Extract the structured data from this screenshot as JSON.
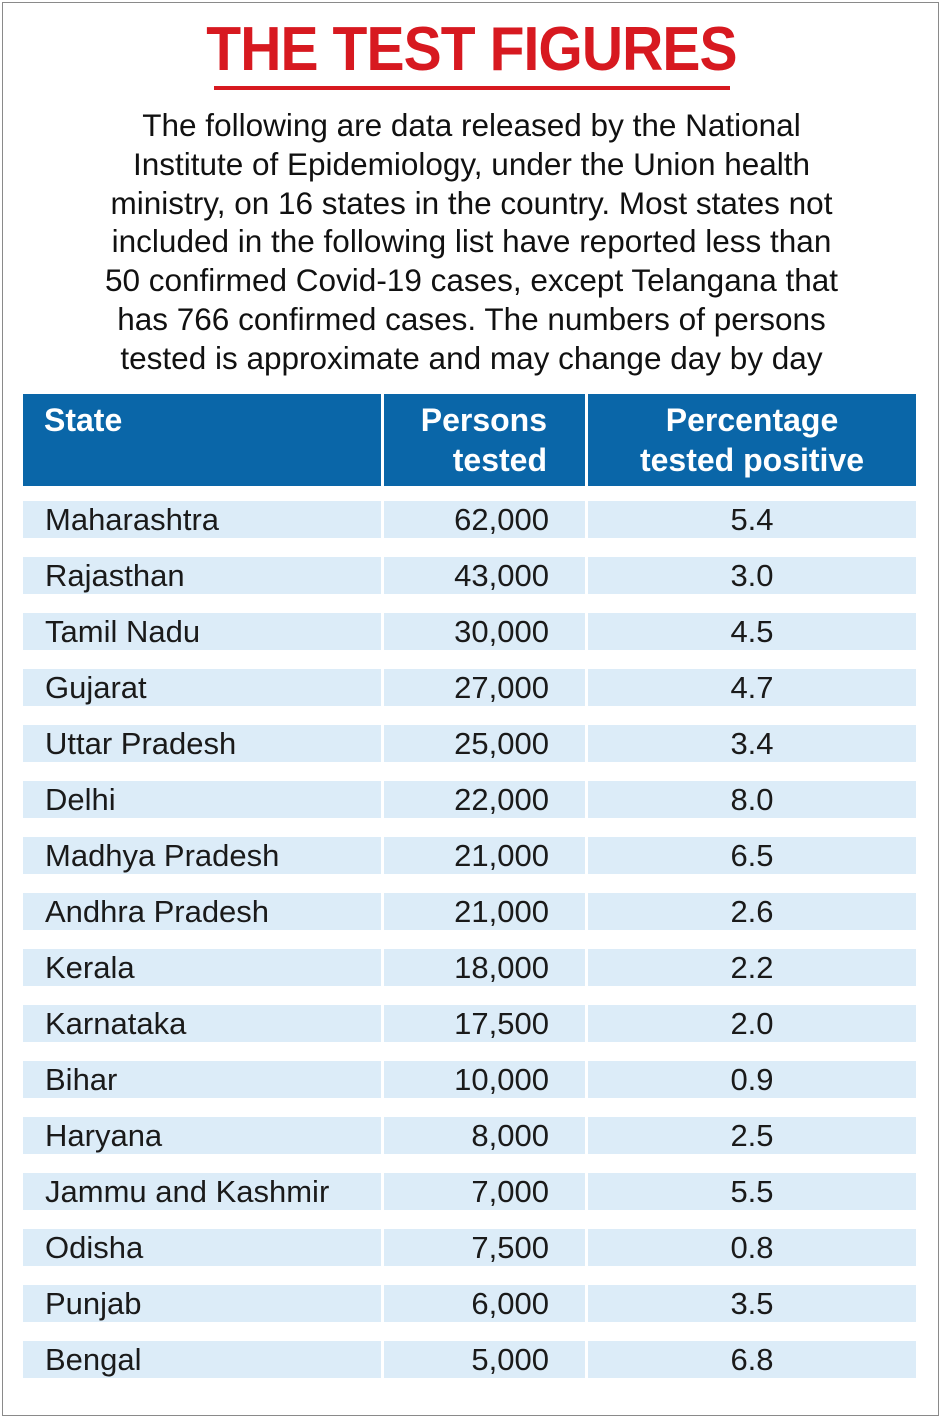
{
  "title": "THE TEST FIGURES",
  "intro_lines": [
    "The following are data released by the National",
    "Institute of Epidemiology, under the Union health",
    "ministry, on 16 states in the country. Most states not",
    "included in the following list have reported less than",
    "50 confirmed Covid-19 cases, except Telangana that",
    "has 766 confirmed cases.  The numbers of persons",
    "tested is  approximate and may change day by day"
  ],
  "colors": {
    "title_red": "#d71920",
    "header_blue": "#0a66a8",
    "row_light_blue": "#dcecf8"
  },
  "chart_data": {
    "type": "table",
    "columns": [
      {
        "key": "state",
        "label_lines": [
          "State"
        ]
      },
      {
        "key": "tested",
        "label_lines": [
          "Persons",
          "tested"
        ]
      },
      {
        "key": "pct",
        "label_lines": [
          "Percentage",
          "tested positive"
        ]
      }
    ],
    "rows": [
      {
        "state": "Maharashtra",
        "tested": "62,000",
        "pct": "5.4"
      },
      {
        "state": "Rajasthan",
        "tested": "43,000",
        "pct": "3.0"
      },
      {
        "state": "Tamil Nadu",
        "tested": "30,000",
        "pct": "4.5"
      },
      {
        "state": "Gujarat",
        "tested": "27,000",
        "pct": "4.7"
      },
      {
        "state": "Uttar Pradesh",
        "tested": "25,000",
        "pct": "3.4"
      },
      {
        "state": "Delhi",
        "tested": "22,000",
        "pct": "8.0"
      },
      {
        "state": "Madhya Pradesh",
        "tested": "21,000",
        "pct": "6.5"
      },
      {
        "state": "Andhra Pradesh",
        "tested": "21,000",
        "pct": "2.6"
      },
      {
        "state": "Kerala",
        "tested": "18,000",
        "pct": "2.2"
      },
      {
        "state": "Karnataka",
        "tested": "17,500",
        "pct": "2.0"
      },
      {
        "state": "Bihar",
        "tested": "10,000",
        "pct": "0.9"
      },
      {
        "state": "Haryana",
        "tested": "8,000",
        "pct": "2.5"
      },
      {
        "state": "Jammu and Kashmir",
        "tested": "7,000",
        "pct": "5.5"
      },
      {
        "state": "Odisha",
        "tested": "7,500",
        "pct": "0.8"
      },
      {
        "state": "Punjab",
        "tested": "6,000",
        "pct": "3.5"
      },
      {
        "state": "Bengal",
        "tested": "5,000",
        "pct": "6.8"
      }
    ]
  }
}
